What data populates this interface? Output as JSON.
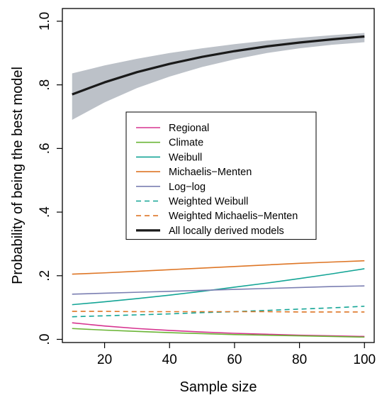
{
  "chart_data": {
    "type": "line",
    "xlabel": "Sample size",
    "ylabel": "Probability of being the best model",
    "xlim": [
      7,
      103
    ],
    "ylim": [
      -0.01,
      1.04
    ],
    "x_ticks": [
      20,
      40,
      60,
      80,
      100
    ],
    "x_tick_labels": [
      "20",
      "40",
      "60",
      "80",
      "100"
    ],
    "y_ticks": [
      0.0,
      0.2,
      0.4,
      0.6,
      0.8,
      1.0
    ],
    "y_tick_labels": [
      ".0",
      ".2",
      ".4",
      ".6",
      ".8",
      "1.0"
    ],
    "grid": false,
    "legend_position": "center",
    "series": [
      {
        "name": "Regional",
        "color": "#d6338f",
        "dash": false,
        "lw": 1.6,
        "x": [
          10,
          20,
          30,
          40,
          50,
          60,
          70,
          80,
          90,
          100
        ],
        "y": [
          0.052,
          0.042,
          0.034,
          0.028,
          0.023,
          0.019,
          0.016,
          0.013,
          0.011,
          0.009
        ]
      },
      {
        "name": "Climate",
        "color": "#6bb536",
        "dash": false,
        "lw": 1.6,
        "x": [
          10,
          20,
          30,
          40,
          50,
          60,
          70,
          80,
          90,
          100
        ],
        "y": [
          0.034,
          0.029,
          0.025,
          0.021,
          0.018,
          0.015,
          0.013,
          0.011,
          0.009,
          0.007
        ]
      },
      {
        "name": "Weibull",
        "color": "#14a596",
        "dash": false,
        "lw": 1.6,
        "x": [
          10,
          20,
          30,
          40,
          50,
          60,
          70,
          80,
          90,
          100
        ],
        "y": [
          0.109,
          0.118,
          0.128,
          0.139,
          0.151,
          0.164,
          0.177,
          0.191,
          0.206,
          0.222
        ]
      },
      {
        "name": "Michaelis−Menten",
        "color": "#de7626",
        "dash": false,
        "lw": 1.6,
        "x": [
          10,
          20,
          30,
          40,
          50,
          60,
          70,
          80,
          90,
          100
        ],
        "y": [
          0.205,
          0.209,
          0.214,
          0.219,
          0.224,
          0.229,
          0.234,
          0.239,
          0.243,
          0.247
        ]
      },
      {
        "name": "Log−log",
        "color": "#7b7fb2",
        "dash": false,
        "lw": 1.6,
        "x": [
          10,
          20,
          30,
          40,
          50,
          60,
          70,
          80,
          90,
          100
        ],
        "y": [
          0.142,
          0.145,
          0.148,
          0.151,
          0.154,
          0.157,
          0.16,
          0.163,
          0.166,
          0.168
        ]
      },
      {
        "name": "Weighted Weibull",
        "color": "#14a596",
        "dash": true,
        "lw": 1.6,
        "x": [
          10,
          20,
          30,
          40,
          50,
          60,
          70,
          80,
          90,
          100
        ],
        "y": [
          0.071,
          0.074,
          0.077,
          0.08,
          0.084,
          0.087,
          0.091,
          0.095,
          0.099,
          0.104
        ]
      },
      {
        "name": "Weighted Michaelis−Menten",
        "color": "#de7626",
        "dash": true,
        "lw": 1.6,
        "x": [
          10,
          20,
          30,
          40,
          50,
          60,
          70,
          80,
          90,
          100
        ],
        "y": [
          0.088,
          0.088,
          0.087,
          0.087,
          0.087,
          0.087,
          0.087,
          0.086,
          0.086,
          0.086
        ]
      },
      {
        "name": "All locally derived models",
        "color": "#1a1a1a",
        "dash": false,
        "lw": 3.2,
        "x": [
          10,
          20,
          30,
          40,
          50,
          60,
          70,
          80,
          90,
          100
        ],
        "y": [
          0.77,
          0.808,
          0.84,
          0.866,
          0.888,
          0.906,
          0.921,
          0.933,
          0.943,
          0.952
        ],
        "ci_lower": [
          0.69,
          0.745,
          0.79,
          0.826,
          0.856,
          0.88,
          0.9,
          0.915,
          0.926,
          0.934
        ],
        "ci_upper": [
          0.836,
          0.861,
          0.882,
          0.9,
          0.915,
          0.928,
          0.939,
          0.948,
          0.956,
          0.963
        ],
        "ci_color": "#bcc1c8"
      }
    ]
  }
}
